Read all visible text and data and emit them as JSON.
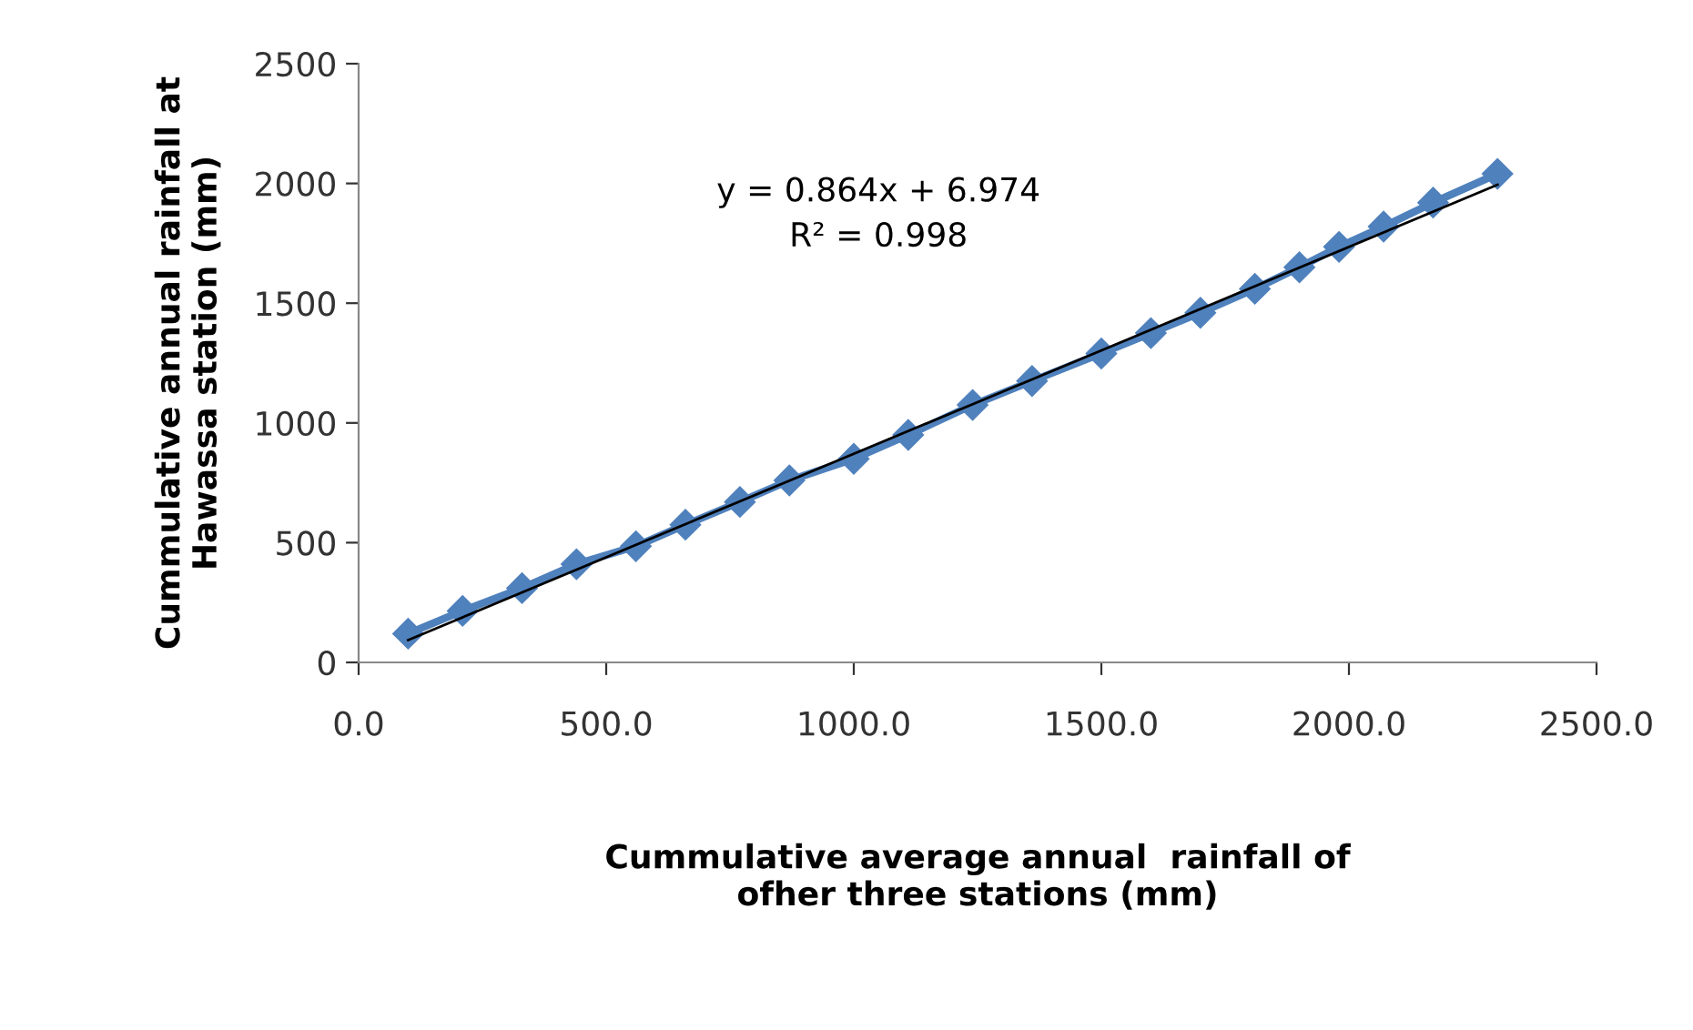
{
  "chart_data": {
    "type": "line",
    "xlabel": "Cummulative average annual  rainfall of\nofher three stations (mm)",
    "ylabel": "Cummulative annual rainfall at\nHawassa station (mm)",
    "marker": "diamond",
    "grid": false,
    "legend": false,
    "xlim": [
      0,
      2500
    ],
    "xticks": [
      {
        "value": 0,
        "label": "0.0"
      },
      {
        "value": 500,
        "label": "500.0"
      },
      {
        "value": 1000,
        "label": "1000.0"
      },
      {
        "value": 1500,
        "label": "1500.0"
      },
      {
        "value": 2000,
        "label": "2000.0"
      },
      {
        "value": 2500,
        "label": "2500.0"
      }
    ],
    "ylim": [
      0,
      2500
    ],
    "yticks": [
      0,
      500,
      1000,
      1500,
      2000,
      2500
    ],
    "annotations": [
      "y = 0.864x + 6.974",
      "R² = 0.998"
    ],
    "series": [
      {
        "color": "#4f81bd",
        "x": [
          100,
          210,
          330,
          440,
          560,
          660,
          770,
          870,
          1000,
          1110,
          1240,
          1360,
          1500,
          1600,
          1700,
          1810,
          1900,
          1980,
          2070,
          2170,
          2300
        ],
        "values": [
          120,
          215,
          310,
          410,
          485,
          575,
          670,
          760,
          850,
          950,
          1075,
          1175,
          1290,
          1375,
          1460,
          1560,
          1650,
          1735,
          1820,
          1920,
          2040
        ]
      },
      {
        "color": "#000000",
        "type": "line",
        "marker": "none",
        "x": [
          100,
          2300
        ],
        "values": [
          93.4,
          1994.2
        ]
      }
    ]
  }
}
